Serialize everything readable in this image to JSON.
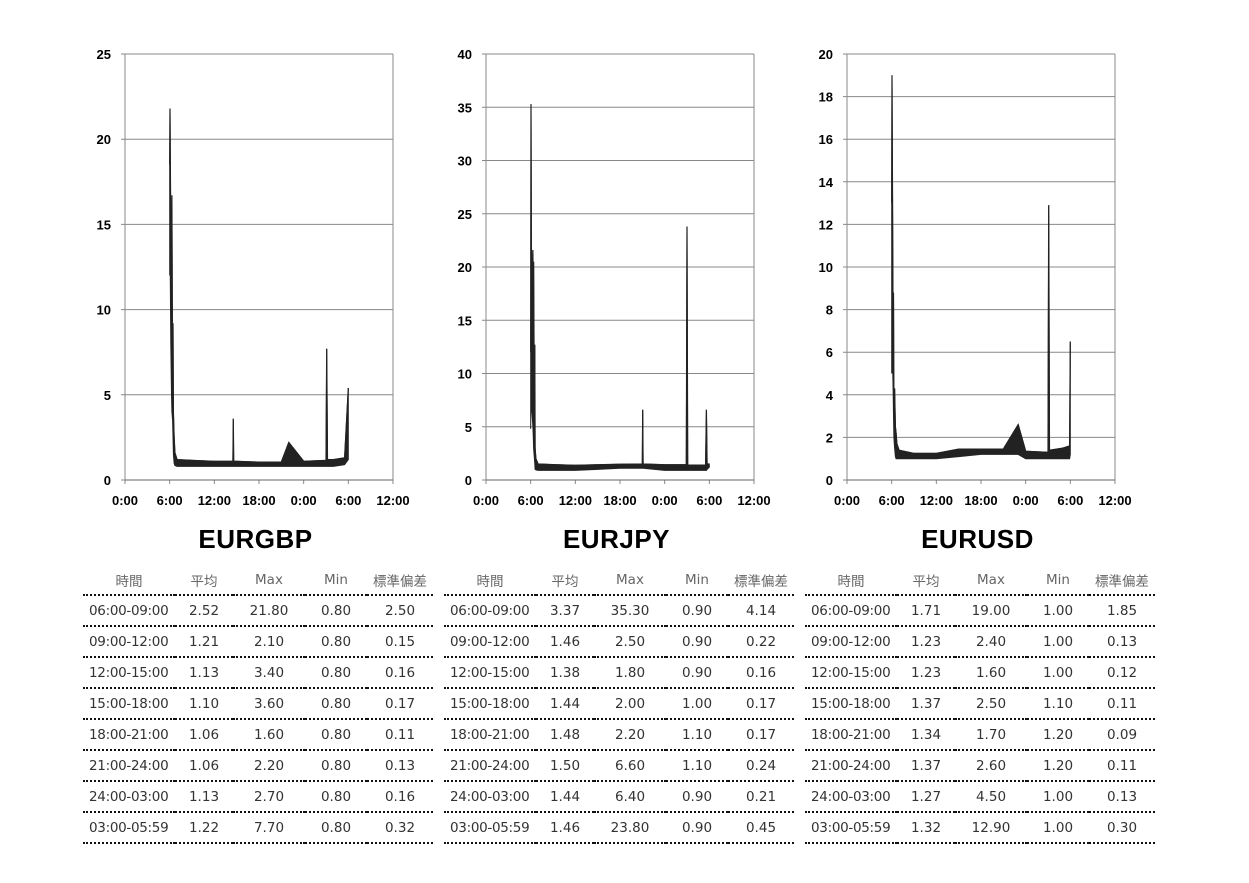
{
  "x_ticks": [
    "0:00",
    "6:00",
    "12:00",
    "18:00",
    "0:00",
    "6:00",
    "12:00"
  ],
  "table_headers": [
    "時間",
    "平均",
    "Max",
    "Min",
    "標準偏差"
  ],
  "panels": [
    {
      "pair": "EURGBP",
      "rows": [
        [
          "06:00-09:00",
          "2.52",
          "21.80",
          "0.80",
          "2.50"
        ],
        [
          "09:00-12:00",
          "1.21",
          "2.10",
          "0.80",
          "0.15"
        ],
        [
          "12:00-15:00",
          "1.13",
          "3.40",
          "0.80",
          "0.16"
        ],
        [
          "15:00-18:00",
          "1.10",
          "3.60",
          "0.80",
          "0.17"
        ],
        [
          "18:00-21:00",
          "1.06",
          "1.60",
          "0.80",
          "0.11"
        ],
        [
          "21:00-24:00",
          "1.06",
          "2.20",
          "0.80",
          "0.13"
        ],
        [
          "24:00-03:00",
          "1.13",
          "2.70",
          "0.80",
          "0.16"
        ],
        [
          "03:00-05:59",
          "1.22",
          "7.70",
          "0.80",
          "0.32"
        ]
      ]
    },
    {
      "pair": "EURJPY",
      "rows": [
        [
          "06:00-09:00",
          "3.37",
          "35.30",
          "0.90",
          "4.14"
        ],
        [
          "09:00-12:00",
          "1.46",
          "2.50",
          "0.90",
          "0.22"
        ],
        [
          "12:00-15:00",
          "1.38",
          "1.80",
          "0.90",
          "0.16"
        ],
        [
          "15:00-18:00",
          "1.44",
          "2.00",
          "1.00",
          "0.17"
        ],
        [
          "18:00-21:00",
          "1.48",
          "2.20",
          "1.10",
          "0.17"
        ],
        [
          "21:00-24:00",
          "1.50",
          "6.60",
          "1.10",
          "0.24"
        ],
        [
          "24:00-03:00",
          "1.44",
          "6.40",
          "0.90",
          "0.21"
        ],
        [
          "03:00-05:59",
          "1.46",
          "23.80",
          "0.90",
          "0.45"
        ]
      ]
    },
    {
      "pair": "EURUSD",
      "rows": [
        [
          "06:00-09:00",
          "1.71",
          "19.00",
          "1.00",
          "1.85"
        ],
        [
          "09:00-12:00",
          "1.23",
          "2.40",
          "1.00",
          "0.13"
        ],
        [
          "12:00-15:00",
          "1.23",
          "1.60",
          "1.00",
          "0.12"
        ],
        [
          "15:00-18:00",
          "1.37",
          "2.50",
          "1.10",
          "0.11"
        ],
        [
          "18:00-21:00",
          "1.34",
          "1.70",
          "1.20",
          "0.09"
        ],
        [
          "21:00-24:00",
          "1.37",
          "2.60",
          "1.20",
          "0.11"
        ],
        [
          "24:00-03:00",
          "1.27",
          "4.50",
          "1.00",
          "0.13"
        ],
        [
          "03:00-05:59",
          "1.32",
          "12.90",
          "1.00",
          "0.30"
        ]
      ]
    }
  ],
  "chart_data": [
    {
      "type": "line",
      "title": "EURGBP",
      "xlabel": "",
      "ylabel": "",
      "ylim": [
        0,
        25
      ],
      "yticks": [
        "0",
        "5",
        "10",
        "15",
        "20",
        "25"
      ],
      "x_range_hours": [
        0,
        36
      ],
      "grid": true,
      "legend": "none",
      "line_color": "#222222",
      "series": [
        {
          "x": [
            6.0,
            6.05,
            6.15,
            6.25,
            6.3,
            6.4,
            6.45,
            6.5,
            6.6,
            6.7,
            7,
            9,
            12,
            14.5,
            14.55,
            14.6,
            15,
            18,
            21,
            22,
            24,
            27,
            27.1,
            27.2,
            28,
            29.5,
            30
          ],
          "y": [
            18.5,
            21.8,
            14.5,
            8.0,
            16.7,
            5.0,
            9.2,
            4.0,
            2.6,
            1.6,
            1.2,
            1.15,
            1.1,
            1.1,
            3.6,
            1.1,
            1.1,
            1.05,
            1.05,
            2.2,
            1.1,
            1.15,
            7.7,
            1.2,
            1.2,
            1.3,
            5.4
          ],
          "low": [
            12.0,
            14.0,
            8.0,
            5.0,
            4.0,
            3.5,
            2.5,
            1.5,
            1.0,
            0.85,
            0.8,
            0.8,
            0.8,
            0.8,
            0.8,
            0.8,
            0.8,
            0.8,
            0.8,
            0.8,
            0.8,
            0.8,
            0.8,
            0.8,
            0.8,
            0.9,
            1.2
          ]
        }
      ]
    },
    {
      "type": "line",
      "title": "EURJPY",
      "xlabel": "",
      "ylabel": "",
      "ylim": [
        0,
        40
      ],
      "yticks": [
        "0",
        "5",
        "10",
        "15",
        "20",
        "25",
        "30",
        "35",
        "40"
      ],
      "x_range_hours": [
        0,
        36
      ],
      "grid": true,
      "legend": "none",
      "line_color": "#222222",
      "series": [
        {
          "x": [
            6.0,
            6.05,
            6.1,
            6.2,
            6.3,
            6.35,
            6.4,
            6.5,
            6.55,
            6.6,
            6.7,
            7,
            9,
            12,
            15,
            18,
            21,
            21.05,
            21.1,
            24,
            26.9,
            27,
            27.1,
            29.5,
            29.6,
            29.7,
            30
          ],
          "y": [
            12.0,
            35.3,
            22.0,
            17.0,
            21.6,
            14.0,
            20.5,
            6.0,
            12.7,
            3.0,
            2.0,
            1.5,
            1.45,
            1.38,
            1.44,
            1.48,
            1.5,
            6.6,
            1.5,
            1.44,
            1.44,
            23.8,
            1.4,
            1.4,
            6.6,
            1.5,
            1.5
          ],
          "low": [
            4.8,
            8.0,
            7.0,
            6.0,
            5.0,
            4.0,
            3.0,
            2.0,
            1.5,
            1.0,
            0.95,
            0.9,
            0.9,
            0.9,
            1.0,
            1.1,
            1.1,
            1.1,
            1.1,
            0.9,
            0.9,
            0.9,
            0.9,
            0.9,
            0.9,
            1.0,
            1.2
          ]
        }
      ]
    },
    {
      "type": "line",
      "title": "EURUSD",
      "xlabel": "",
      "ylabel": "",
      "ylim": [
        0,
        20
      ],
      "yticks": [
        "0",
        "2",
        "4",
        "6",
        "8",
        "10",
        "12",
        "14",
        "16",
        "18",
        "20"
      ],
      "x_range_hours": [
        0,
        36
      ],
      "grid": true,
      "legend": "none",
      "line_color": "#222222",
      "series": [
        {
          "x": [
            6.0,
            6.05,
            6.15,
            6.2,
            6.25,
            6.3,
            6.4,
            6.5,
            6.6,
            6.7,
            7,
            9,
            12,
            15,
            18,
            21,
            23,
            24,
            27,
            27.1,
            27.2,
            29,
            29.9,
            30
          ],
          "y": [
            13.0,
            19.0,
            10.3,
            6.0,
            8.8,
            3.0,
            4.3,
            2.5,
            2.2,
            1.7,
            1.4,
            1.25,
            1.25,
            1.45,
            1.45,
            1.45,
            2.6,
            1.35,
            1.3,
            12.9,
            1.4,
            1.5,
            1.6,
            6.5
          ],
          "low": [
            5.0,
            6.0,
            5.0,
            4.0,
            3.0,
            2.0,
            1.5,
            1.1,
            1.0,
            1.0,
            1.0,
            1.0,
            1.0,
            1.1,
            1.2,
            1.2,
            1.2,
            1.0,
            1.0,
            1.0,
            1.0,
            1.0,
            1.0,
            1.2
          ]
        }
      ]
    }
  ]
}
